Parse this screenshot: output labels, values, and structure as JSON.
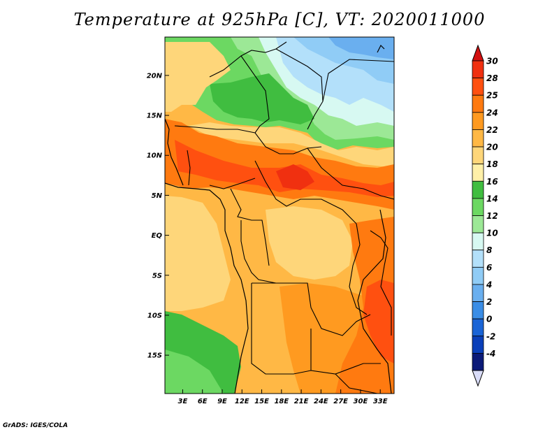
{
  "title": "Temperature at 925hPa [C], VT: 2020011000",
  "footer": "GrADS: IGES/COLA",
  "map": {
    "lat_labels": [
      "20N",
      "15N",
      "10N",
      "5N",
      "EQ",
      "5S",
      "10S",
      "15S"
    ],
    "lat_values": [
      20,
      15,
      10,
      5,
      0,
      -5,
      -10,
      -15
    ],
    "lon_labels": [
      "3E",
      "6E",
      "9E",
      "12E",
      "15E",
      "18E",
      "21E",
      "24E",
      "27E",
      "30E",
      "33E"
    ],
    "lon_values": [
      3,
      6,
      9,
      12,
      15,
      18,
      21,
      24,
      27,
      30,
      33
    ],
    "lat_range": [
      -19.8,
      24.8
    ],
    "lon_range": [
      0.3,
      35.1
    ]
  },
  "colorbar": {
    "labels": [
      "30",
      "28",
      "25",
      "24",
      "22",
      "20",
      "18",
      "16",
      "14",
      "12",
      "10",
      "8",
      "6",
      "4",
      "2",
      "0",
      "-2",
      "-4"
    ],
    "colors": [
      "#f03010",
      "#ff5010",
      "#ff7a10",
      "#ff9a20",
      "#ffb845",
      "#fed67a",
      "#fff0a8",
      "#40bd40",
      "#6cd862",
      "#9ce896",
      "#d7f9f2",
      "#b3e0fa",
      "#90ccf6",
      "#6aafef",
      "#3a8de6",
      "#1a64d6",
      "#0a3fb9",
      "#0b1a78"
    ],
    "top_cap_color": "#d21010",
    "bottom_cap_color": "#d9dcf8"
  }
}
